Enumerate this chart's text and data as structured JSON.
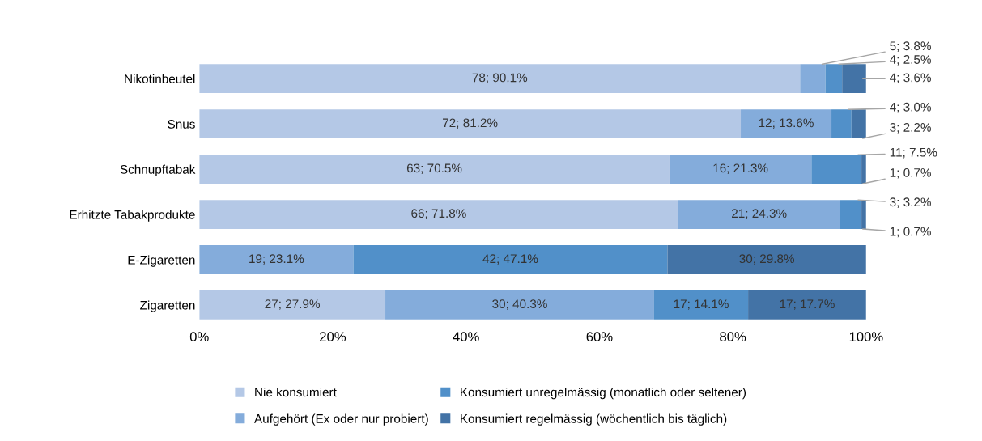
{
  "chart_data": {
    "type": "bar",
    "orientation": "horizontal",
    "stacked": true,
    "categories": [
      "Nikotinbeutel",
      "Snus",
      "Schnupftabak",
      "Erhitzte Tabakprodukte",
      "E-Zigaretten",
      "Zigaretten"
    ],
    "series": [
      {
        "name": "Nie konsumiert",
        "color": "#b4c8e6",
        "values": [
          90.1,
          81.2,
          70.5,
          71.8,
          null,
          27.9
        ],
        "value_labels": [
          "78; 90.1%",
          "72; 81.2%",
          "63; 70.5%",
          "66; 71.8%",
          null,
          "27; 27.9%"
        ]
      },
      {
        "name": "Aufgehört (Ex oder nur probiert)",
        "color": "#84acdb",
        "values": [
          3.8,
          13.6,
          21.3,
          24.3,
          23.1,
          40.3
        ],
        "value_labels": [
          "5; 3.8%",
          "12; 13.6%",
          "16; 21.3%",
          "21; 24.3%",
          "19; 23.1%",
          "30; 40.3%"
        ]
      },
      {
        "name": "Konsumiert unregelmässig (monatlich oder seltener)",
        "color": "#5190c9",
        "values": [
          2.5,
          3.0,
          7.5,
          3.2,
          47.1,
          14.1
        ],
        "value_labels": [
          "4; 2.5%",
          "4; 3.0%",
          "11; 7.5%",
          "3; 3.2%",
          "42; 47.1%",
          "17; 14.1%"
        ]
      },
      {
        "name": "Konsumiert regelmässig (wöchentlich bis täglich)",
        "color": "#4373a6",
        "values": [
          3.6,
          2.2,
          0.7,
          0.7,
          29.8,
          17.7
        ],
        "value_labels": [
          "4; 3.6%",
          "3; 2.2%",
          "1; 0.7%",
          "1; 0.7%",
          "30; 29.8%",
          "17; 17.7%"
        ]
      }
    ],
    "xlim": [
      0,
      100
    ],
    "xticks": [
      {
        "value": 0,
        "label": "0%"
      },
      {
        "value": 20,
        "label": "20%"
      },
      {
        "value": 40,
        "label": "40%"
      },
      {
        "value": 60,
        "label": "60%"
      },
      {
        "value": 80,
        "label": "80%"
      },
      {
        "value": 100,
        "label": "100%"
      }
    ],
    "grid": false,
    "legend": "bottom"
  }
}
